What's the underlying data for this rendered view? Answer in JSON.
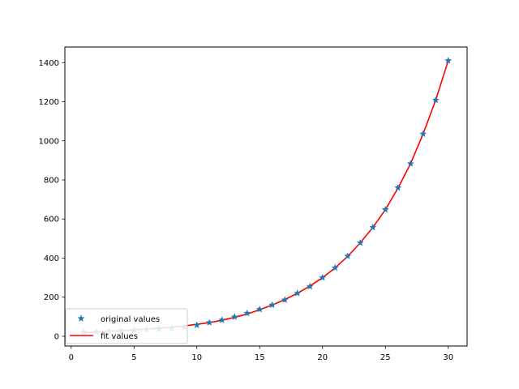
{
  "chart_data": {
    "type": "line",
    "title": "",
    "xlabel": "",
    "ylabel": "",
    "xlim": [
      -0.5,
      31.5
    ],
    "ylim": [
      -50,
      1480
    ],
    "x_ticks": [
      0,
      5,
      10,
      15,
      20,
      25,
      30
    ],
    "y_ticks": [
      0,
      200,
      400,
      600,
      800,
      1000,
      1200,
      1400
    ],
    "x_tick_labels": [
      "0",
      "5",
      "10",
      "15",
      "20",
      "25",
      "30"
    ],
    "y_tick_labels": [
      "0",
      "200",
      "400",
      "600",
      "800",
      "1000",
      "1200",
      "1400"
    ],
    "grid": false,
    "legend_position": "lower left",
    "series": [
      {
        "name": "original values",
        "kind": "scatter",
        "marker": "star",
        "color": "#1f77b4",
        "x": [
          1,
          2,
          3,
          4,
          5,
          6,
          7,
          8,
          9,
          10,
          11,
          12,
          13,
          14,
          15,
          16,
          17,
          18,
          19,
          20,
          21,
          22,
          23,
          24,
          25,
          26,
          27,
          28,
          29,
          30
        ],
        "y": [
          21,
          23,
          26,
          28,
          31,
          35,
          38,
          42,
          47,
          57,
          70,
          83,
          99,
          118,
          138,
          160,
          186,
          220,
          255,
          300,
          350,
          410,
          478,
          557,
          648,
          760,
          883,
          1035,
          1208,
          1410
        ]
      },
      {
        "name": "fit values",
        "kind": "line",
        "color": "#ff0000",
        "x": [
          1,
          2,
          3,
          4,
          5,
          6,
          7,
          8,
          9,
          10,
          11,
          12,
          13,
          14,
          15,
          16,
          17,
          18,
          19,
          20,
          21,
          22,
          23,
          24,
          25,
          26,
          27,
          28,
          29,
          30
        ],
        "y": [
          19,
          22,
          26,
          29,
          33,
          37,
          42,
          47,
          53,
          61,
          70,
          82,
          97,
          114,
          136,
          160,
          188,
          220,
          257,
          300,
          350,
          409,
          478,
          557,
          648,
          758,
          883,
          1035,
          1208,
          1410
        ]
      }
    ]
  }
}
